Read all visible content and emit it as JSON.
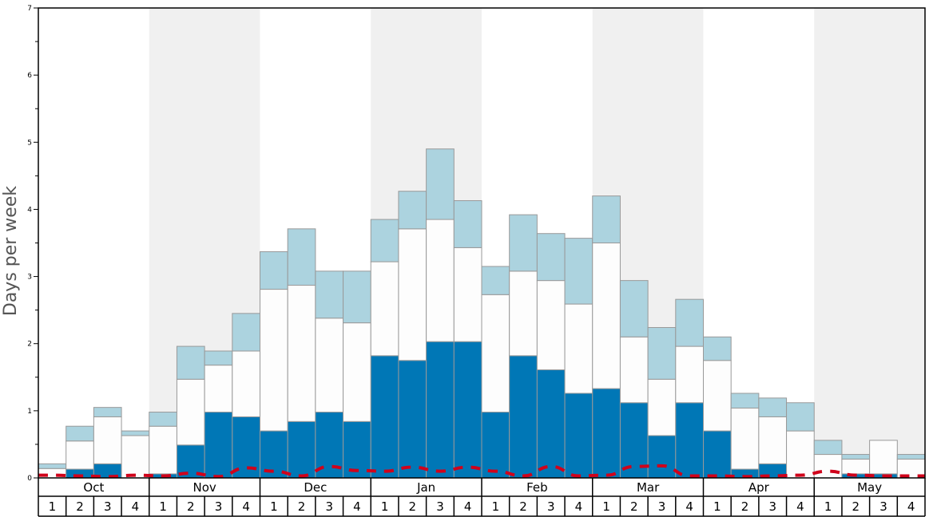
{
  "chart_data": {
    "type": "bar",
    "stacked": true,
    "ylabel": "Days per week",
    "ylim": [
      0,
      7
    ],
    "y_ticks": [
      0,
      1,
      2,
      3,
      4,
      5,
      6,
      7
    ],
    "months": [
      "Oct",
      "Nov",
      "Dec",
      "Jan",
      "Feb",
      "Mar",
      "Apr",
      "May"
    ],
    "weeks": [
      "1",
      "2",
      "3",
      "4"
    ],
    "colors": {
      "dark": "#0077b6",
      "middle": "#fdfdfd",
      "top": "#acd3df",
      "line": "#d0021b",
      "band": "#f0f0f0",
      "bar_edge": "#999999"
    },
    "series": [
      {
        "values": [
          0,
          0.13,
          0.21,
          0,
          0.06,
          0.49,
          0.98,
          0.91,
          0.7,
          0.84,
          0.98,
          0.84,
          1.82,
          1.75,
          2.03,
          2.03,
          0.98,
          1.82,
          1.61,
          1.26,
          1.33,
          1.12,
          0.63,
          1.12,
          0.7,
          0.13,
          0.21,
          0,
          0,
          0.06,
          0.06,
          0
        ]
      },
      {
        "values": [
          0.14,
          0.42,
          0.7,
          0.63,
          0.71,
          0.98,
          0.7,
          0.98,
          2.11,
          2.03,
          1.4,
          1.47,
          1.4,
          1.96,
          1.82,
          1.4,
          1.75,
          1.26,
          1.33,
          1.33,
          2.17,
          0.98,
          0.84,
          0.84,
          1.05,
          0.91,
          0.7,
          0.7,
          0.35,
          0.22,
          0.5,
          0.28
        ]
      },
      {
        "values": [
          0.07,
          0.22,
          0.14,
          0.07,
          0.21,
          0.49,
          0.21,
          0.56,
          0.56,
          0.84,
          0.7,
          0.77,
          0.63,
          0.56,
          1.05,
          0.7,
          0.42,
          0.84,
          0.7,
          0.98,
          0.7,
          0.84,
          0.77,
          0.7,
          0.35,
          0.22,
          0.28,
          0.42,
          0.21,
          0.07,
          0,
          0.07
        ]
      },
      {
        "type": "line",
        "dashed": true,
        "values": [
          0.04,
          0.03,
          0.02,
          0.04,
          0.03,
          0.07,
          0.02,
          0.15,
          0.1,
          0.03,
          0.17,
          0.11,
          0.1,
          0.16,
          0.1,
          0.16,
          0.1,
          0.03,
          0.17,
          0.03,
          0.04,
          0.17,
          0.18,
          0.03,
          0.03,
          0.02,
          0.03,
          0.04,
          0.1,
          0.04,
          0.03,
          0.03
        ]
      }
    ]
  }
}
